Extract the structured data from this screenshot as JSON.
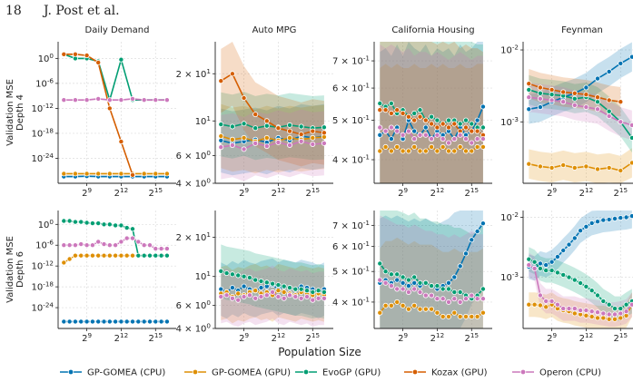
{
  "header": {
    "page_number": "18",
    "authors": "J. Post et al."
  },
  "figure": {
    "xlabel": "Population Size",
    "row_labels": [
      [
        "Validation MSE",
        "Depth 4"
      ],
      [
        "Validation MSE",
        "Depth 6"
      ]
    ],
    "x_ticks": [
      {
        "v": 9,
        "label": "2^9"
      },
      {
        "v": 12,
        "label": "2^12"
      },
      {
        "v": 15,
        "label": "2^15"
      }
    ],
    "x_range_log2": [
      6.5,
      16.8
    ],
    "legend": [
      {
        "name": "GP-GOMEA (CPU)",
        "color": "#0173b2"
      },
      {
        "name": "GP-GOMEA (GPU)",
        "color": "#de8f05"
      },
      {
        "name": "EvoGP (GPU)",
        "color": "#029e73"
      },
      {
        "name": "Kozax (GPU)",
        "color": "#d55e00"
      },
      {
        "name": "Operon (CPU)",
        "color": "#cc78bc"
      }
    ]
  },
  "chart_data": [
    {
      "type": "line",
      "title": "Daily Demand",
      "row": 0,
      "col": 0,
      "yscale": "log",
      "ylim": [
        1e-30,
        10000.0
      ],
      "y_ticks": [
        {
          "v": 1,
          "label": "10^0"
        },
        {
          "v": 1e-06,
          "label": "10^-6"
        },
        {
          "v": 1e-12,
          "label": "10^-12"
        },
        {
          "v": 1e-18,
          "label": "10^-18"
        },
        {
          "v": 1e-24,
          "label": "10^-24"
        }
      ],
      "x_log2": [
        7,
        8,
        9,
        10,
        11,
        12,
        13,
        14,
        15,
        16
      ],
      "series": [
        {
          "name": "GP-GOMEA (CPU)",
          "values": [
            4e-29,
            4e-29,
            5e-29,
            4e-29,
            4e-29,
            4e-29,
            4e-29,
            4e-29,
            4e-29,
            4e-29
          ]
        },
        {
          "name": "GP-GOMEA (GPU)",
          "values": [
            2e-28,
            2e-28,
            2e-28,
            2e-28,
            2e-28,
            2e-28,
            2e-28,
            2e-28,
            2e-28,
            2e-28
          ]
        },
        {
          "name": "EvoGP (GPU)",
          "values": [
            10,
            1,
            1,
            0.2,
            1e-10,
            0.5,
            1e-10,
            1e-10,
            1e-10,
            1e-10
          ]
        },
        {
          "name": "Kozax (GPU)",
          "values": [
            10,
            10,
            5,
            0.1,
            1e-12,
            1e-20,
            1e-28,
            null,
            null,
            null
          ]
        },
        {
          "name": "Operon (CPU)",
          "values": [
            1e-10,
            1e-10,
            1e-10,
            2e-10,
            1e-10,
            1e-10,
            2e-10,
            1e-10,
            1e-10,
            1e-10
          ]
        }
      ]
    },
    {
      "type": "line",
      "title": "Auto MPG",
      "row": 0,
      "col": 1,
      "yscale": "log",
      "ylim": [
        4,
        32
      ],
      "y_ticks": [
        {
          "v": 20,
          "label": "2 × 10^1"
        },
        {
          "v": 10,
          "label": "10^1"
        },
        {
          "v": 6,
          "label": "6 × 10^0"
        },
        {
          "v": 4,
          "label": "4 × 10^0"
        }
      ],
      "x_log2": [
        7,
        8,
        9,
        10,
        11,
        12,
        13,
        14,
        15,
        16
      ],
      "series": [
        {
          "name": "GP-GOMEA (CPU)",
          "values": [
            7.5,
            7.2,
            7.4,
            7.6,
            7.3,
            7.8,
            7.5,
            8.0,
            7.8,
            8.0
          ]
        },
        {
          "name": "GP-GOMEA (GPU)",
          "values": [
            8.0,
            7.6,
            7.8,
            7.4,
            7.8,
            7.5,
            7.8,
            7.6,
            7.8,
            7.9
          ]
        },
        {
          "name": "EvoGP (GPU)",
          "values": [
            9.5,
            9.2,
            9.6,
            9.0,
            9.3,
            9.1,
            9.4,
            9.2,
            9.0,
            9.1
          ]
        },
        {
          "name": "Kozax (GPU)",
          "values": [
            18,
            20,
            14,
            11,
            10,
            9,
            8.6,
            8.2,
            8.6,
            8.4
          ]
        },
        {
          "name": "Operon (CPU)",
          "values": [
            6.8,
            7.0,
            6.6,
            7.2,
            6.9,
            7.3,
            7.0,
            7.4,
            7.1,
            7.2
          ]
        }
      ]
    },
    {
      "type": "line",
      "title": "California Housing",
      "row": 0,
      "col": 2,
      "yscale": "log",
      "ylim": [
        0.35,
        0.78
      ],
      "y_ticks": [
        {
          "v": 0.7,
          "label": "7 × 10^-1"
        },
        {
          "v": 0.6,
          "label": "6 × 10^-1"
        },
        {
          "v": 0.5,
          "label": "5 × 10^-1"
        },
        {
          "v": 0.4,
          "label": "4 × 10^-1"
        }
      ],
      "x_log2": [
        7,
        7.5,
        8,
        8.5,
        9,
        9.5,
        10,
        10.5,
        11,
        11.5,
        12,
        12.5,
        13,
        13.5,
        14,
        14.5,
        15,
        15.5,
        16
      ],
      "series": [
        {
          "name": "GP-GOMEA (CPU)",
          "values": [
            0.46,
            0.47,
            0.45,
            0.48,
            0.45,
            0.5,
            0.47,
            0.46,
            0.48,
            0.45,
            0.47,
            0.46,
            0.47,
            0.45,
            0.48,
            0.46,
            0.47,
            0.5,
            0.54
          ]
        },
        {
          "name": "GP-GOMEA (GPU)",
          "values": [
            0.42,
            0.43,
            0.42,
            0.43,
            0.42,
            0.42,
            0.43,
            0.42,
            0.42,
            0.43,
            0.42,
            0.43,
            0.42,
            0.42,
            0.43,
            0.42,
            0.42,
            0.43,
            0.43
          ]
        },
        {
          "name": "EvoGP (GPU)",
          "values": [
            0.55,
            0.54,
            0.55,
            0.52,
            0.53,
            0.51,
            0.52,
            0.53,
            0.5,
            0.51,
            0.5,
            0.49,
            0.5,
            0.5,
            0.49,
            0.5,
            0.49,
            0.48,
            0.48
          ]
        },
        {
          "name": "Kozax (GPU)",
          "values": [
            0.53,
            0.53,
            0.52,
            0.53,
            0.52,
            0.51,
            0.5,
            0.51,
            0.5,
            0.49,
            0.48,
            0.49,
            0.48,
            0.49,
            0.47,
            0.48,
            0.47,
            0.47,
            0.46
          ]
        },
        {
          "name": "Operon (CPU)",
          "values": [
            0.48,
            0.47,
            0.48,
            0.47,
            0.46,
            0.47,
            0.45,
            0.46,
            0.46,
            0.45,
            0.46,
            0.45,
            0.44,
            0.45,
            0.46,
            0.45,
            0.44,
            0.45,
            0.45
          ]
        }
      ]
    },
    {
      "type": "line",
      "title": "Feynman",
      "row": 0,
      "col": 3,
      "yscale": "log",
      "ylim": [
        0.00014,
        0.013
      ],
      "y_ticks": [
        {
          "v": 0.01,
          "label": "10^-2"
        },
        {
          "v": 0.001,
          "label": "10^-3"
        }
      ],
      "x_log2": [
        7,
        8,
        9,
        10,
        11,
        12,
        13,
        14,
        15,
        16
      ],
      "series": [
        {
          "name": "GP-GOMEA (CPU)",
          "values": [
            0.0015,
            0.0016,
            0.0019,
            0.0022,
            0.0025,
            0.003,
            0.004,
            0.005,
            0.0065,
            0.008
          ]
        },
        {
          "name": "GP-GOMEA (GPU)",
          "values": [
            0.00026,
            0.00024,
            0.00023,
            0.00025,
            0.00023,
            0.00024,
            0.00022,
            0.00023,
            0.00021,
            0.00027
          ]
        },
        {
          "name": "EvoGP (GPU)",
          "values": [
            0.0028,
            0.0025,
            0.0024,
            0.0023,
            0.0021,
            0.0022,
            0.0019,
            0.0014,
            0.001,
            0.0006
          ]
        },
        {
          "name": "Kozax (GPU)",
          "values": [
            0.0034,
            0.003,
            0.0028,
            0.0026,
            0.0025,
            0.0024,
            0.0022,
            0.002,
            0.0019,
            null
          ]
        },
        {
          "name": "Operon (CPU)",
          "values": [
            0.0022,
            0.0021,
            0.002,
            0.0019,
            0.0017,
            0.0016,
            0.0015,
            0.0012,
            0.001,
            0.0009
          ]
        }
      ]
    },
    {
      "type": "line",
      "title": "",
      "row": 1,
      "col": 0,
      "yscale": "log",
      "ylim": [
        1e-30,
        10000.0
      ],
      "y_ticks": [
        {
          "v": 1,
          "label": "10^0"
        },
        {
          "v": 1e-06,
          "label": "10^-6"
        },
        {
          "v": 1e-12,
          "label": "10^-12"
        },
        {
          "v": 1e-18,
          "label": "10^-18"
        },
        {
          "v": 1e-24,
          "label": "10^-24"
        }
      ],
      "x_log2": [
        7,
        7.5,
        8,
        8.5,
        9,
        9.5,
        10,
        10.5,
        11,
        11.5,
        12,
        12.5,
        13,
        13.5,
        14,
        14.5,
        15,
        15.5,
        16
      ],
      "series": [
        {
          "name": "GP-GOMEA (CPU)",
          "values": [
            1e-28,
            1e-28,
            1e-28,
            1e-28,
            1e-28,
            1e-28,
            1e-28,
            1e-28,
            1e-28,
            1e-28,
            1e-28,
            1e-28,
            1e-28,
            1e-28,
            1e-28,
            1e-28,
            1e-28,
            1e-28,
            1e-28
          ]
        },
        {
          "name": "GP-GOMEA (GPU)",
          "values": [
            1e-11,
            1e-10,
            1e-09,
            1e-09,
            1e-09,
            1e-09,
            1e-09,
            1e-09,
            1e-09,
            1e-09,
            1e-09,
            1e-09,
            1e-09,
            1e-09,
            1e-09,
            1e-09,
            1e-09,
            1e-09,
            1e-09
          ]
        },
        {
          "name": "EvoGP (GPU)",
          "values": [
            10,
            10,
            5,
            5,
            3,
            2,
            2,
            1,
            1,
            0.5,
            0.5,
            0.1,
            0.05,
            1e-09,
            1e-09,
            1e-09,
            1e-09,
            1e-09,
            1e-09
          ]
        },
        {
          "name": "Operon (CPU)",
          "values": [
            1e-06,
            1e-06,
            1e-06,
            2e-06,
            1e-06,
            1e-06,
            1e-05,
            2e-06,
            1e-06,
            1e-06,
            1e-05,
            0.0001,
            0.0001,
            1e-05,
            1e-06,
            1e-06,
            1e-07,
            1e-07,
            1e-07
          ]
        }
      ]
    },
    {
      "type": "line",
      "title": "",
      "row": 1,
      "col": 1,
      "yscale": "log",
      "ylim": [
        4,
        32
      ],
      "y_ticks": [
        {
          "v": 20,
          "label": "2 × 10^1"
        },
        {
          "v": 10,
          "label": "10^1"
        },
        {
          "v": 6,
          "label": "6 × 10^0"
        },
        {
          "v": 4,
          "label": "4 × 10^0"
        }
      ],
      "x_log2": [
        7,
        7.5,
        8,
        8.5,
        9,
        9.5,
        10,
        10.5,
        11,
        11.5,
        12,
        12.5,
        13,
        13.5,
        14,
        14.5,
        15,
        15.5,
        16
      ],
      "series": [
        {
          "name": "GP-GOMEA (CPU)",
          "values": [
            8,
            7.6,
            8.2,
            7.8,
            8.4,
            8,
            7.8,
            8.2,
            8.4,
            8.6,
            8,
            8.4,
            8.2,
            8,
            8.4,
            8.2,
            8,
            7.6,
            8
          ]
        },
        {
          "name": "GP-GOMEA (GPU)",
          "values": [
            7.4,
            7.6,
            7,
            7.4,
            7.2,
            7.6,
            7.8,
            7.4,
            7.6,
            7.2,
            7.8,
            7.6,
            7.4,
            7.2,
            7.6,
            7.4,
            7.2,
            7.4,
            7.2
          ]
        },
        {
          "name": "EvoGP (GPU)",
          "values": [
            11,
            10.6,
            10.4,
            10.2,
            10,
            9.8,
            9.4,
            9.2,
            9,
            8.8,
            8.6,
            8.4,
            8.2,
            8,
            8,
            7.8,
            7.6,
            7.8,
            7.6
          ]
        },
        {
          "name": "Operon (CPU)",
          "values": [
            7,
            7.2,
            6.8,
            6.6,
            7,
            7.2,
            6.8,
            7,
            7.2,
            7.6,
            7,
            6.8,
            7.2,
            7,
            6.8,
            7,
            6.6,
            6.8,
            6.8
          ]
        }
      ]
    },
    {
      "type": "line",
      "title": "",
      "row": 1,
      "col": 2,
      "yscale": "log",
      "ylim": [
        0.33,
        0.78
      ],
      "y_ticks": [
        {
          "v": 0.7,
          "label": "7 × 10^-1"
        },
        {
          "v": 0.6,
          "label": "6 × 10^-1"
        },
        {
          "v": 0.5,
          "label": "5 × 10^-1"
        },
        {
          "v": 0.4,
          "label": "4 × 10^-1"
        }
      ],
      "x_log2": [
        7,
        7.5,
        8,
        8.5,
        9,
        9.5,
        10,
        10.5,
        11,
        11.5,
        12,
        12.5,
        13,
        13.5,
        14,
        14.5,
        15,
        15.5,
        16
      ],
      "series": [
        {
          "name": "GP-GOMEA (CPU)",
          "values": [
            0.46,
            0.47,
            0.46,
            0.47,
            0.46,
            0.45,
            0.46,
            0.45,
            0.46,
            0.45,
            0.44,
            0.45,
            0.46,
            0.48,
            0.52,
            0.57,
            0.63,
            0.67,
            0.71
          ]
        },
        {
          "name": "GP-GOMEA (GPU)",
          "values": [
            0.37,
            0.39,
            0.39,
            0.4,
            0.39,
            0.38,
            0.39,
            0.38,
            0.38,
            0.38,
            0.37,
            0.36,
            0.36,
            0.37,
            0.36,
            0.36,
            0.36,
            0.36,
            0.37
          ]
        },
        {
          "name": "EvoGP (GPU)",
          "values": [
            0.53,
            0.5,
            0.49,
            0.49,
            0.48,
            0.47,
            0.48,
            0.46,
            0.46,
            0.45,
            0.45,
            0.44,
            0.44,
            0.43,
            0.43,
            0.42,
            0.41,
            0.42,
            0.44
          ]
        },
        {
          "name": "Operon (CPU)",
          "values": [
            0.47,
            0.46,
            0.45,
            0.44,
            0.44,
            0.43,
            0.44,
            0.43,
            0.42,
            0.42,
            0.41,
            0.41,
            0.4,
            0.41,
            0.4,
            0.41,
            0.42,
            0.41,
            0.41
          ]
        }
      ]
    },
    {
      "type": "line",
      "title": "",
      "row": 1,
      "col": 3,
      "yscale": "log",
      "ylim": [
        0.00014,
        0.013
      ],
      "y_ticks": [
        {
          "v": 0.01,
          "label": "10^-2"
        },
        {
          "v": 0.001,
          "label": "10^-3"
        }
      ],
      "x_log2": [
        7,
        7.5,
        8,
        8.5,
        9,
        9.5,
        10,
        10.5,
        11,
        11.5,
        12,
        12.5,
        13,
        13.5,
        14,
        14.5,
        15,
        15.5,
        16
      ],
      "series": [
        {
          "name": "GP-GOMEA (CPU)",
          "values": [
            0.0015,
            0.0014,
            0.0017,
            0.0016,
            0.0018,
            0.0022,
            0.0028,
            0.0035,
            0.0045,
            0.006,
            0.007,
            0.008,
            0.0085,
            0.009,
            0.0092,
            0.0095,
            0.0098,
            0.01,
            0.0105
          ]
        },
        {
          "name": "GP-GOMEA (GPU)",
          "values": [
            0.00035,
            0.00035,
            0.00034,
            0.00032,
            0.00035,
            0.0003,
            0.00028,
            0.00027,
            0.00025,
            0.00024,
            0.00023,
            0.00022,
            0.00021,
            0.00021,
            0.0002,
            0.0002,
            0.00021,
            0.00023,
            0.00035
          ]
        },
        {
          "name": "EvoGP (GPU)",
          "values": [
            0.002,
            0.0018,
            0.0014,
            0.0013,
            0.0013,
            0.0012,
            0.0011,
            0.001,
            0.0009,
            0.0008,
            0.0007,
            0.0006,
            0.0005,
            0.0004,
            0.00035,
            0.0003,
            0.0003,
            0.00035,
            0.0004
          ]
        },
        {
          "name": "Operon (CPU)",
          "values": [
            0.0016,
            0.0014,
            0.0005,
            0.0004,
            0.0004,
            0.00035,
            0.0003,
            0.0003,
            0.0003,
            0.00028,
            0.00028,
            0.00027,
            0.00026,
            0.00025,
            0.00024,
            0.00024,
            0.00025,
            0.00027,
            0.00035
          ]
        }
      ]
    }
  ]
}
